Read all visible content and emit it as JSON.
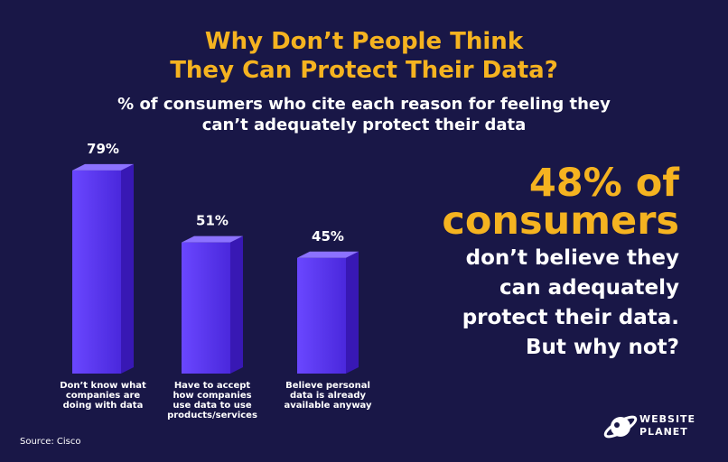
{
  "title_line1": "Why Don’t People Think",
  "title_line2": "They Can Protect Their Data?",
  "subtitle_line1": "% of consumers who cite each reason for feeling they",
  "subtitle_line2": "can’t adequately protect their data",
  "chart_data": {
    "type": "bar",
    "categories": [
      "Don’t know what\ncompanies are\ndoing with data",
      "Have to accept\nhow companies\nuse data to use\nproducts/services",
      "Believe personal\ndata is already\navailable anyway"
    ],
    "values": [
      79,
      51,
      45
    ],
    "value_labels": [
      "79%",
      "51%",
      "45%"
    ],
    "bar_color": "#5b37f0"
  },
  "callout": {
    "big_line1": "48% of",
    "big_line2": "consumers",
    "text": "don’t believe they\ncan adequately\nprotect their data.\nBut why not?"
  },
  "source": "Source: Cisco",
  "logo": {
    "text": "WEBSITE\nPLANET",
    "icon": "planet-icon"
  },
  "colors": {
    "background": "#191747",
    "accent": "#f5b320",
    "text": "#ffffff"
  }
}
